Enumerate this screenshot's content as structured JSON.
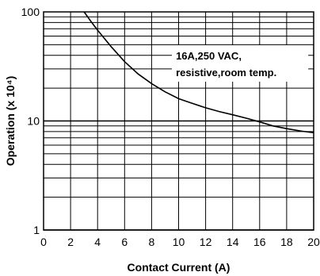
{
  "chart_data": {
    "type": "line",
    "title": "",
    "xlabel": "Contact Current (A)",
    "ylabel": "Operation (x 10⁴)",
    "xlim": [
      0,
      20
    ],
    "ylim": [
      1,
      100
    ],
    "yscale": "log",
    "grid": true,
    "x_ticks": [
      "0",
      "2",
      "4",
      "6",
      "8",
      "10",
      "12",
      "14",
      "16",
      "18",
      "20"
    ],
    "y_ticks": [
      "1",
      "10",
      "100"
    ],
    "annotation": {
      "line1": "16A,250 VAC,",
      "line2": "resistive,room temp."
    },
    "series": [
      {
        "x": [
          3,
          3.5,
          4,
          5,
          6,
          7,
          8,
          9,
          10,
          11,
          12,
          13,
          14,
          15,
          16,
          17,
          18,
          19,
          20
        ],
        "values": [
          100,
          82,
          68,
          48,
          35,
          27,
          22,
          18.5,
          16,
          14.5,
          13.2,
          12.2,
          11.4,
          10.6,
          9.8,
          9.0,
          8.5,
          8.1,
          7.8
        ]
      }
    ]
  }
}
